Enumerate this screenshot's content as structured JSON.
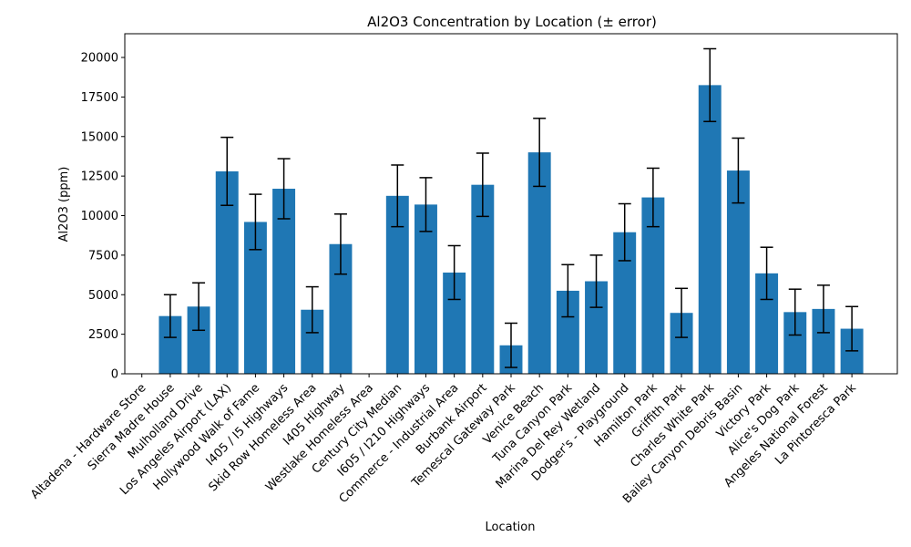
{
  "chart_data": {
    "type": "bar",
    "title": "Al2O3 Concentration by Location (± error)",
    "xlabel": "Location",
    "ylabel": "Al2O3 (ppm)",
    "ylim": [
      0,
      21500
    ],
    "yticks": [
      0,
      2500,
      5000,
      7500,
      10000,
      12500,
      15000,
      17500,
      20000
    ],
    "ytick_labels": [
      "0",
      "2500",
      "5000",
      "7500",
      "10000",
      "12500",
      "15000",
      "17500",
      "20000"
    ],
    "grid": false,
    "bar_color": "#1f77b4",
    "errorbar_color": "#000000",
    "categories": [
      "Altadena - Hardware Store",
      "Sierra Madre House",
      "Mulholland Drive",
      "Los Angeles Airport (LAX)",
      "Hollywood Walk of Fame",
      "I405 / I5 Highways",
      "Skid Row Homeless Area",
      "I405 Highway",
      "Westlake Homeless Area",
      "Century City Median",
      "I605 / I210 Highways",
      "Commerce - Industrial Area",
      "Burbank Airport",
      "Temescal Gateway Park",
      "Venice Beach",
      "Tuna Canyon Park",
      "Marina Del Rey Wetland",
      "Dodger's - Playground",
      "Hamilton Park",
      "Griffith Park",
      "Charles White Park",
      "Bailey Canyon Debris Basin",
      "Victory Park",
      "Alice's Dog Park",
      "Angeles National Forest",
      "La Pintoresca Park"
    ],
    "values": [
      0,
      3650,
      4250,
      12800,
      9600,
      11700,
      4050,
      8200,
      0,
      11250,
      10700,
      6400,
      11950,
      1800,
      14000,
      5250,
      5850,
      8950,
      11150,
      3850,
      18250,
      12850,
      6350,
      3900,
      4100,
      2850
    ],
    "errors": [
      0,
      1350,
      1500,
      2150,
      1750,
      1900,
      1450,
      1900,
      0,
      1950,
      1700,
      1700,
      2000,
      1400,
      2150,
      1650,
      1650,
      1800,
      1850,
      1550,
      2300,
      2050,
      1650,
      1450,
      1500,
      1400
    ]
  }
}
